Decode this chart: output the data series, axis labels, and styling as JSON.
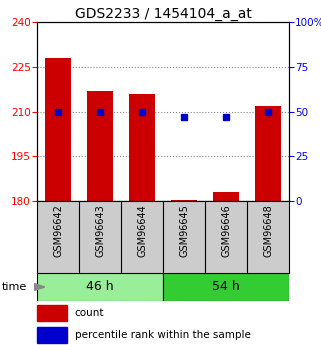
{
  "title": "GDS2233 / 1454104_a_at",
  "samples": [
    "GSM96642",
    "GSM96643",
    "GSM96644",
    "GSM96645",
    "GSM96646",
    "GSM96648"
  ],
  "count_values": [
    228,
    217,
    216,
    180.5,
    183,
    212
  ],
  "percentile_values": [
    50,
    50,
    50,
    47,
    47,
    50
  ],
  "count_base": 180,
  "ylim_left": [
    180,
    240
  ],
  "ylim_right": [
    0,
    100
  ],
  "yticks_left": [
    180,
    195,
    210,
    225,
    240
  ],
  "yticks_right": [
    0,
    25,
    50,
    75,
    100
  ],
  "bar_color": "#cc0000",
  "dot_color": "#0000cc",
  "groups": [
    {
      "label": "46 h",
      "indices": [
        0,
        1,
        2
      ],
      "color": "#99ee99"
    },
    {
      "label": "54 h",
      "indices": [
        3,
        4,
        5
      ],
      "color": "#33cc33"
    }
  ],
  "time_label": "time",
  "legend_count_label": "count",
  "legend_pct_label": "percentile rank within the sample",
  "title_fontsize": 10,
  "tick_fontsize": 7.5,
  "sample_fontsize": 7,
  "group_fontsize": 9,
  "background_color": "#ffffff",
  "plot_bg_color": "#ffffff",
  "sample_bg_color": "#cccccc",
  "grid_color": "#888888"
}
